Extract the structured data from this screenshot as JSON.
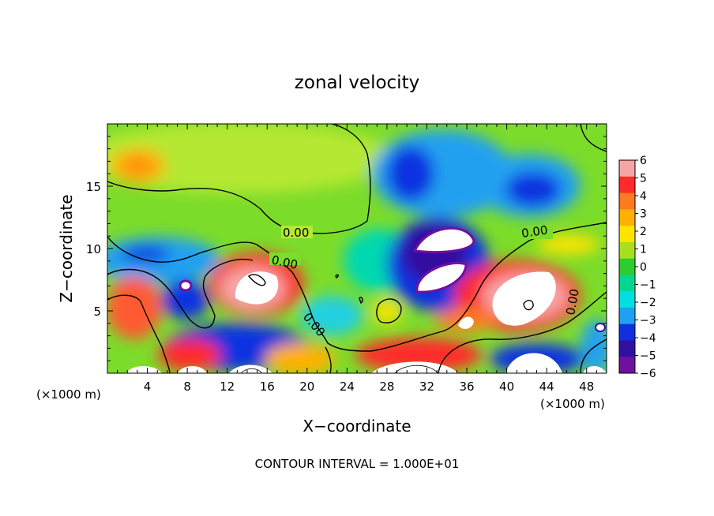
{
  "chart_data": {
    "type": "heatmap",
    "title": "zonal velocity",
    "xlabel": "X−coordinate",
    "ylabel": "Z−coordinate",
    "x_unit_left": "(×1000 m)",
    "x_unit_right": "(×1000 m)",
    "footer": "CONTOUR INTERVAL = 1.000E+01",
    "xlim": [
      0,
      50
    ],
    "ylim": [
      0,
      20
    ],
    "x_ticks": [
      "4",
      "8",
      "12",
      "16",
      "20",
      "24",
      "28",
      "32",
      "36",
      "40",
      "44",
      "48"
    ],
    "y_ticks": [
      "5",
      "10",
      "15"
    ],
    "colorbar": {
      "range": [
        -6,
        6
      ],
      "labels": [
        "6",
        "5",
        "4",
        "3",
        "2",
        "1",
        "0",
        "−1",
        "−2",
        "−3",
        "−4",
        "−5",
        "−6"
      ],
      "colors": [
        "#f4a6a6",
        "#ff2a2a",
        "#ff7a20",
        "#ffb000",
        "#ffe400",
        "#a8e020",
        "#2ecc2e",
        "#00d890",
        "#00e0e0",
        "#20a0f0",
        "#1030e0",
        "#3010a0",
        "#7010a0"
      ]
    },
    "contour_labels": [
      "0.00",
      "0.00",
      "0.00",
      "0.00",
      "0.00"
    ],
    "grid": false
  }
}
